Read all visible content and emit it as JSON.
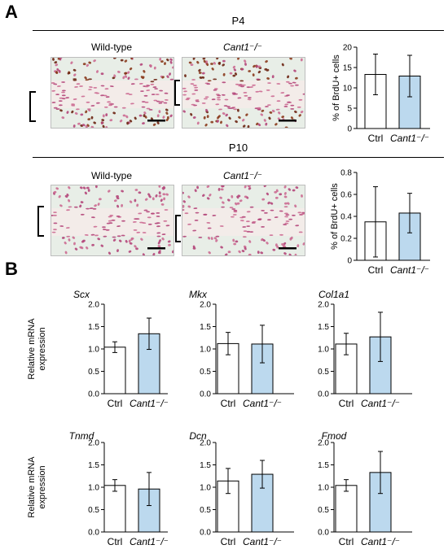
{
  "panel_a": {
    "letter": "A",
    "rows": [
      {
        "title": "P4",
        "wt_label": "Wild-type",
        "ko_label": "Cant1⁻/⁻"
      },
      {
        "title": "P10",
        "wt_label": "Wild-type",
        "ko_label": "Cant1⁻/⁻"
      }
    ]
  },
  "panel_b": {
    "letter": "B"
  },
  "colors": {
    "ctrl_fill": "#ffffff",
    "ko_fill": "#bcd9ee",
    "stroke": "#000000"
  },
  "chart_data": [
    {
      "type": "bar",
      "id": "p4-brdu",
      "title": "",
      "categories": [
        "Ctrl",
        "Cant1⁻/⁻"
      ],
      "values": [
        13.3,
        12.9
      ],
      "errors": [
        5.0,
        5.1
      ],
      "ylabel": "% of BrdU+ cells",
      "ylim": [
        0,
        20
      ],
      "yticks": [
        "0",
        "5",
        "10",
        "15",
        "20"
      ]
    },
    {
      "type": "bar",
      "id": "p10-brdu",
      "title": "",
      "categories": [
        "Ctrl",
        "Cant1⁻/⁻"
      ],
      "values": [
        0.35,
        0.43
      ],
      "errors": [
        0.32,
        0.18
      ],
      "ylabel": "% of BrdU+ cells",
      "ylim": [
        0,
        0.8
      ],
      "yticks": [
        "0",
        "0.2",
        "0.4",
        "0.6",
        "0.8"
      ]
    },
    {
      "type": "bar",
      "id": "scx",
      "title": "Scx",
      "categories": [
        "Ctrl",
        "Cant1⁻/⁻"
      ],
      "values": [
        1.04,
        1.34
      ],
      "errors": [
        0.12,
        0.35
      ],
      "ylabel": "Relative mRNA expression",
      "ylim": [
        0,
        2.0
      ],
      "yticks": [
        "0.0",
        "0.5",
        "1.0",
        "1.5",
        "2.0"
      ]
    },
    {
      "type": "bar",
      "id": "mkx",
      "title": "Mkx",
      "categories": [
        "Ctrl",
        "Cant1⁻/⁻"
      ],
      "values": [
        1.12,
        1.11
      ],
      "errors": [
        0.25,
        0.42
      ],
      "ylabel": "",
      "ylim": [
        0,
        2.0
      ],
      "yticks": [
        "0.0",
        "0.5",
        "1.0",
        "1.5",
        "2.0"
      ]
    },
    {
      "type": "bar",
      "id": "col1a1",
      "title": "Col1a1",
      "categories": [
        "Ctrl",
        "Cant1⁻/⁻"
      ],
      "values": [
        1.11,
        1.27
      ],
      "errors": [
        0.24,
        0.55
      ],
      "ylabel": "",
      "ylim": [
        0,
        2.0
      ],
      "yticks": [
        "0.0",
        "0.5",
        "1.0",
        "1.5",
        "2.0"
      ]
    },
    {
      "type": "bar",
      "id": "tnmd",
      "title": "Tnmd",
      "categories": [
        "Ctrl",
        "Cant1⁻/⁻"
      ],
      "values": [
        1.04,
        0.96
      ],
      "errors": [
        0.13,
        0.37
      ],
      "ylabel": "Relative mRNA expression",
      "ylim": [
        0,
        2.0
      ],
      "yticks": [
        "0.0",
        "0.5",
        "1.0",
        "1.5",
        "2.0"
      ]
    },
    {
      "type": "bar",
      "id": "dcn",
      "title": "Dcn",
      "categories": [
        "Ctrl",
        "Cant1⁻/⁻"
      ],
      "values": [
        1.14,
        1.29
      ],
      "errors": [
        0.28,
        0.31
      ],
      "ylabel": "",
      "ylim": [
        0,
        2.0
      ],
      "yticks": [
        "0.0",
        "0.5",
        "1.0",
        "1.5",
        "2.0"
      ]
    },
    {
      "type": "bar",
      "id": "fmod",
      "title": "Fmod",
      "categories": [
        "Ctrl",
        "Cant1⁻/⁻"
      ],
      "values": [
        1.04,
        1.33
      ],
      "errors": [
        0.13,
        0.47
      ],
      "ylabel": "",
      "ylim": [
        0,
        2.0
      ],
      "yticks": [
        "0.0",
        "0.5",
        "1.0",
        "1.5",
        "2.0"
      ]
    }
  ]
}
